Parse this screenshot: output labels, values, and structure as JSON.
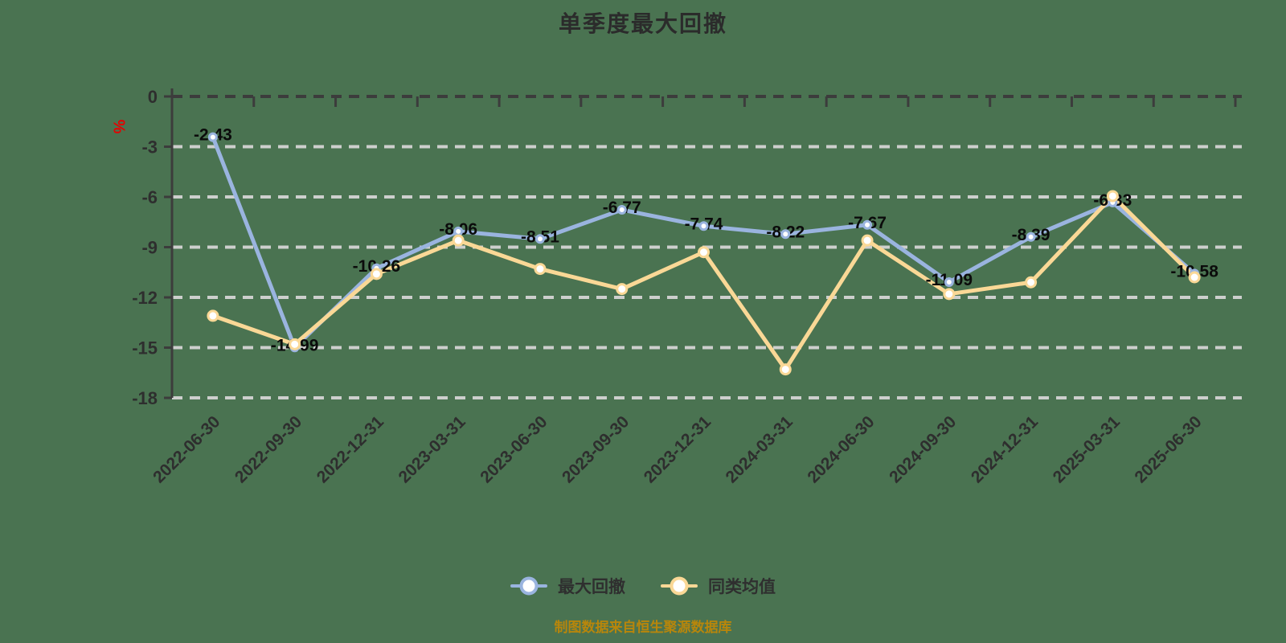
{
  "title": "单季度最大回撤",
  "y_unit": "%",
  "source_note": "制图数据来自恒生聚源数据库",
  "legend": {
    "items": [
      {
        "label": "最大回撤"
      },
      {
        "label": "同类均值"
      }
    ]
  },
  "colors": {
    "background": "#4A7351",
    "title_text": "#2B2B2B",
    "axis": "#3C3C3C",
    "grid": "#CDCFCD",
    "tick_text": "#2E2E2E",
    "label_text": "#0B0B0B",
    "unit_red": "#E60000",
    "source_text": "#B8860B",
    "series_blue": "#9AB4DF",
    "series_yellow": "#FAD896"
  },
  "chart_data": {
    "type": "line",
    "title": "单季度最大回撤",
    "ylabel": "%",
    "xlabel": "",
    "ylim": [
      -18,
      0
    ],
    "ytick_step": 3,
    "grid": "horizontal-dashed",
    "legend_position": "bottom",
    "x_label_rotation": 45,
    "categories": [
      "2022-06-30",
      "2022-09-30",
      "2022-12-31",
      "2023-03-31",
      "2023-06-30",
      "2023-09-30",
      "2023-12-31",
      "2024-03-31",
      "2024-06-30",
      "2024-09-30",
      "2024-12-31",
      "2025-03-31",
      "2025-06-30"
    ],
    "series": [
      {
        "name": "最大回撤",
        "color": "#9AB4DF",
        "marker_radius": 4.5,
        "data_labels": true,
        "values": [
          -2.43,
          -14.99,
          -10.26,
          -8.06,
          -8.51,
          -6.77,
          -7.74,
          -8.22,
          -7.67,
          -11.09,
          -8.39,
          -6.33,
          -10.58
        ]
      },
      {
        "name": "同类均值",
        "color": "#FAD896",
        "marker_radius": 6,
        "data_labels": false,
        "values": [
          -13.1,
          -14.8,
          -10.6,
          -8.6,
          -10.3,
          -11.5,
          -9.3,
          -16.3,
          -8.6,
          -11.8,
          -11.1,
          -5.95,
          -10.8
        ]
      }
    ]
  }
}
